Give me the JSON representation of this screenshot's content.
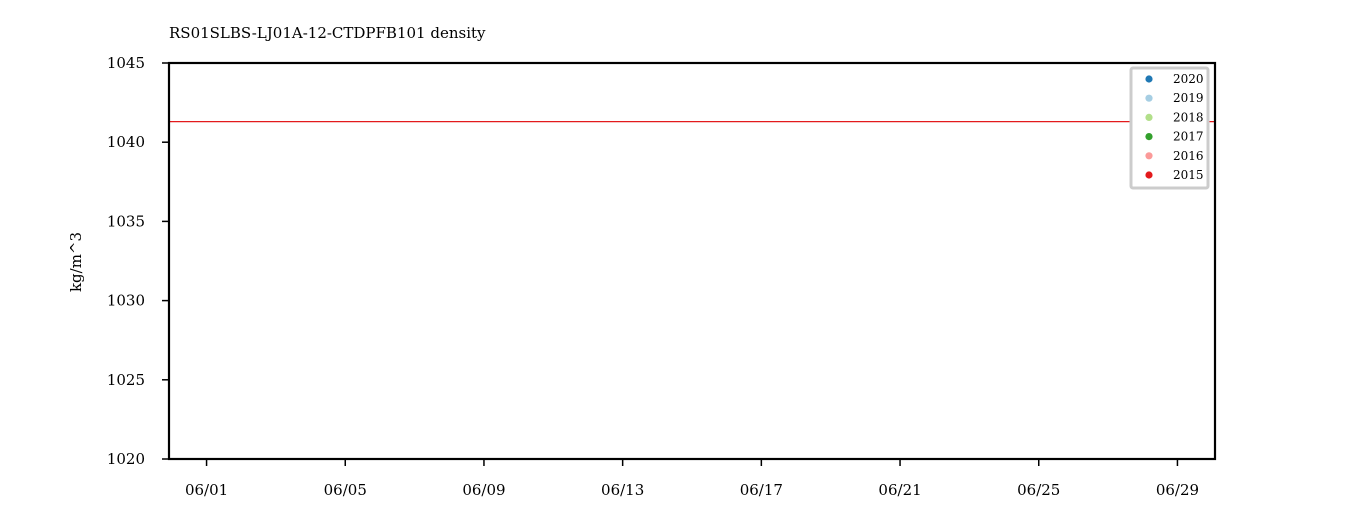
{
  "chart_data": {
    "type": "line",
    "title": "RS01SLBS-LJ01A-12-CTDPFB101 density",
    "xlabel": "",
    "ylabel": "kg/m^3",
    "xlim": [
      "2020-05-30T22:00",
      "2020-06-30T02:00"
    ],
    "ylim": [
      1020,
      1045
    ],
    "x_ticks": [
      "06/01",
      "06/05",
      "06/09",
      "06/13",
      "06/17",
      "06/21",
      "06/25",
      "06/29"
    ],
    "y_ticks": [
      1020,
      1025,
      1030,
      1035,
      1040,
      1045
    ],
    "grid": false,
    "legend_position": "top-right",
    "legend": [
      {
        "name": "2020",
        "color": "#1f78b4"
      },
      {
        "name": "2019",
        "color": "#a6cee3"
      },
      {
        "name": "2018",
        "color": "#b2df8a"
      },
      {
        "name": "2017",
        "color": "#33a02c"
      },
      {
        "name": "2016",
        "color": "#fb9a99"
      },
      {
        "name": "2015",
        "color": "#e31a1c"
      }
    ],
    "series": [
      {
        "name": "2015",
        "color": "#e31a1c",
        "x": [
          "2020-05-30T22:00",
          "2020-06-06T00:00",
          "2020-06-12T00:00",
          "2020-06-13T00:00",
          "2020-06-13T14:00",
          "2020-06-20T00:00",
          "2020-06-27T00:00",
          "2020-06-30T02:00"
        ],
        "y": [
          1041.3,
          1041.3,
          1041.3,
          1041.3,
          1041.3,
          1041.3,
          1041.3,
          1041.3
        ]
      }
    ]
  }
}
